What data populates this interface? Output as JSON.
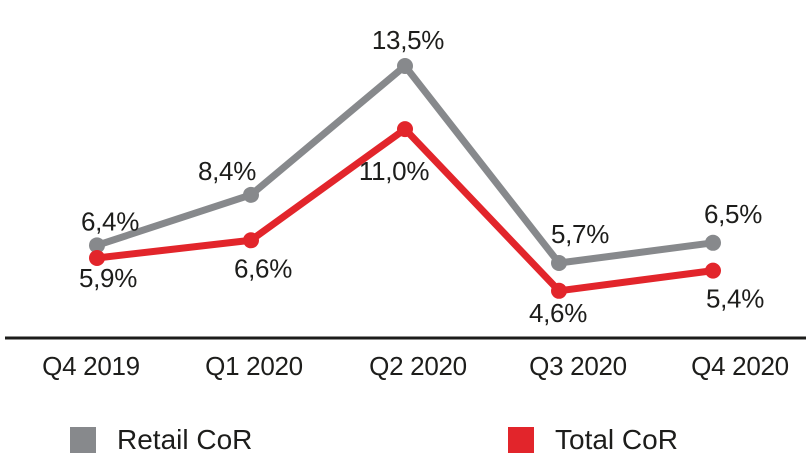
{
  "chart_data": {
    "type": "line",
    "categories": [
      "Q4 2019",
      "Q1 2020",
      "Q2 2020",
      "Q3 2020",
      "Q4 2020"
    ],
    "series": [
      {
        "name": "Retail CoR",
        "color": "#87898C",
        "values": [
          6.4,
          8.4,
          13.5,
          5.7,
          6.5
        ],
        "labels": [
          "6,4%",
          "8,4%",
          "13,5%",
          "5,7%",
          "6,5%"
        ]
      },
      {
        "name": "Total CoR",
        "color": "#E2252B",
        "values": [
          5.9,
          6.6,
          11.0,
          4.6,
          5.4
        ],
        "labels": [
          "5,9%",
          "6,6%",
          "11,0%",
          "4,6%",
          "5,4%"
        ]
      }
    ],
    "title": "",
    "xlabel": "",
    "ylabel": "",
    "unit": "%",
    "decimal_separator": ",",
    "grid": false,
    "y_axis": "hidden",
    "legend_position": "bottom",
    "axis_color": "#1d1d1b",
    "text_color": "#1d1d1b",
    "background": "#ffffff"
  }
}
